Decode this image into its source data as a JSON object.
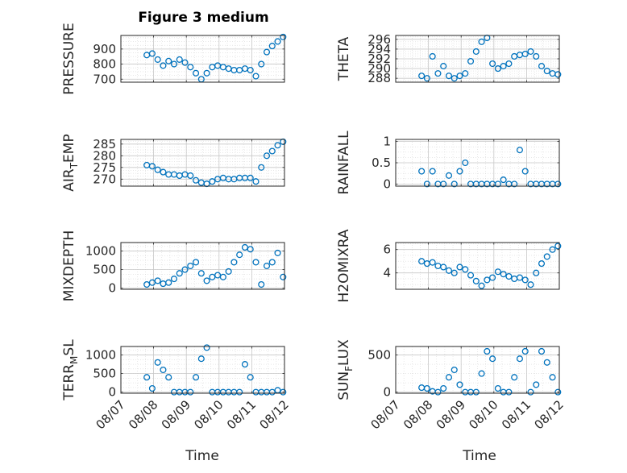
{
  "title": "Figure 3 medium",
  "xlabel": "Time",
  "x_ticks": [
    "08/07",
    "08/08",
    "08/09",
    "08/10",
    "08/11",
    "08/12"
  ],
  "marker_color": "#0072BD",
  "chart_data": [
    {
      "type": "scatter",
      "ylabel": "PRESSURE",
      "yticks": [
        700,
        800,
        900
      ],
      "ylim": [
        680,
        990
      ],
      "grid": true,
      "x": [
        "08/07 19:00",
        "08/07 23:00",
        "08/08 03:00",
        "08/08 07:00",
        "08/08 11:00",
        "08/08 15:00",
        "08/08 19:00",
        "08/08 23:00",
        "08/09 03:00",
        "08/09 07:00",
        "08/09 11:00",
        "08/09 15:00",
        "08/09 19:00",
        "08/09 23:00",
        "08/10 03:00",
        "08/10 07:00",
        "08/10 11:00",
        "08/10 15:00",
        "08/10 19:00",
        "08/10 23:00",
        "08/11 03:00",
        "08/11 07:00",
        "08/11 11:00",
        "08/11 15:00",
        "08/11 19:00",
        "08/11 23:00"
      ],
      "y": [
        860,
        870,
        830,
        790,
        820,
        800,
        830,
        810,
        780,
        740,
        700,
        740,
        780,
        790,
        780,
        770,
        760,
        760,
        770,
        760,
        720,
        800,
        880,
        920,
        950,
        980
      ]
    },
    {
      "type": "scatter",
      "ylabel": "THETA",
      "yticks": [
        288,
        290,
        292,
        294,
        296
      ],
      "ylim": [
        287.2,
        296.8
      ],
      "grid": true,
      "x": [
        "08/07 19:00",
        "08/07 23:00",
        "08/08 03:00",
        "08/08 07:00",
        "08/08 11:00",
        "08/08 15:00",
        "08/08 19:00",
        "08/08 23:00",
        "08/09 03:00",
        "08/09 07:00",
        "08/09 11:00",
        "08/09 15:00",
        "08/09 19:00",
        "08/09 23:00",
        "08/10 03:00",
        "08/10 07:00",
        "08/10 11:00",
        "08/10 15:00",
        "08/10 19:00",
        "08/10 23:00",
        "08/11 03:00",
        "08/11 07:00",
        "08/11 11:00",
        "08/11 15:00",
        "08/11 19:00",
        "08/11 23:00"
      ],
      "y": [
        288.5,
        288.0,
        292.5,
        289.0,
        290.5,
        288.5,
        288.0,
        288.5,
        289.0,
        291.5,
        293.5,
        295.5,
        296.3,
        291.0,
        290.0,
        290.5,
        291.0,
        292.5,
        292.8,
        293.0,
        293.5,
        292.5,
        290.5,
        289.5,
        289.0,
        288.8
      ]
    },
    {
      "type": "scatter",
      "ylabel": "AIR_TEMP",
      "ylabel_main": "AIR",
      "ylabel_sub": "T",
      "ylabel_rest": "EMP",
      "yticks": [
        270,
        275,
        280,
        285
      ],
      "ylim": [
        267,
        287
      ],
      "grid": true,
      "x": [
        "08/07 19:00",
        "08/07 23:00",
        "08/08 03:00",
        "08/08 07:00",
        "08/08 11:00",
        "08/08 15:00",
        "08/08 19:00",
        "08/08 23:00",
        "08/09 03:00",
        "08/09 07:00",
        "08/09 11:00",
        "08/09 15:00",
        "08/09 19:00",
        "08/09 23:00",
        "08/10 03:00",
        "08/10 07:00",
        "08/10 11:00",
        "08/10 15:00",
        "08/10 19:00",
        "08/10 23:00",
        "08/11 03:00",
        "08/11 07:00",
        "08/11 11:00",
        "08/11 15:00",
        "08/11 19:00",
        "08/11 23:00"
      ],
      "y": [
        276,
        275.5,
        274,
        273,
        272,
        272,
        271.5,
        272,
        271.5,
        269.5,
        268.5,
        268,
        269,
        270,
        270.5,
        270,
        270,
        270.5,
        270.5,
        270.5,
        269,
        275,
        280,
        282,
        284.5,
        286
      ]
    },
    {
      "type": "scatter",
      "ylabel": "RAINFALL",
      "yticks": [
        0,
        0.5,
        1
      ],
      "ylim": [
        -0.05,
        1.05
      ],
      "grid": true,
      "x": [
        "08/07 19:00",
        "08/07 23:00",
        "08/08 03:00",
        "08/08 07:00",
        "08/08 11:00",
        "08/08 15:00",
        "08/08 19:00",
        "08/08 23:00",
        "08/09 03:00",
        "08/09 07:00",
        "08/09 11:00",
        "08/09 15:00",
        "08/09 19:00",
        "08/09 23:00",
        "08/10 03:00",
        "08/10 07:00",
        "08/10 11:00",
        "08/10 15:00",
        "08/10 19:00",
        "08/10 23:00",
        "08/11 03:00",
        "08/11 07:00",
        "08/11 11:00",
        "08/11 15:00",
        "08/11 19:00",
        "08/11 23:00"
      ],
      "y": [
        0.3,
        0.0,
        0.3,
        0.0,
        0.0,
        0.2,
        0.0,
        0.3,
        0.5,
        0.0,
        0.0,
        0.0,
        0.0,
        0.0,
        0.0,
        0.1,
        0.0,
        0.0,
        0.8,
        0.3,
        0.0,
        0.0,
        0.0,
        0.0,
        0.0,
        0.0
      ]
    },
    {
      "type": "scatter",
      "ylabel": "MIXDEPTH",
      "yticks": [
        0,
        500,
        1000
      ],
      "ylim": [
        -30,
        1230
      ],
      "grid": true,
      "x": [
        "08/07 19:00",
        "08/07 23:00",
        "08/08 03:00",
        "08/08 07:00",
        "08/08 11:00",
        "08/08 15:00",
        "08/08 19:00",
        "08/08 23:00",
        "08/09 03:00",
        "08/09 07:00",
        "08/09 11:00",
        "08/09 15:00",
        "08/09 19:00",
        "08/09 23:00",
        "08/10 03:00",
        "08/10 07:00",
        "08/10 11:00",
        "08/10 15:00",
        "08/10 19:00",
        "08/10 23:00",
        "08/11 03:00",
        "08/11 07:00",
        "08/11 11:00",
        "08/11 15:00",
        "08/11 19:00",
        "08/11 23:00"
      ],
      "y": [
        100,
        150,
        200,
        120,
        150,
        250,
        400,
        500,
        600,
        700,
        400,
        200,
        300,
        350,
        300,
        450,
        700,
        900,
        1100,
        1050,
        700,
        100,
        600,
        700,
        950,
        300
      ]
    },
    {
      "type": "scatter",
      "ylabel": "H2OMIXRA",
      "yticks": [
        4,
        6
      ],
      "ylim": [
        2.6,
        6.6
      ],
      "grid": true,
      "x": [
        "08/07 19:00",
        "08/07 23:00",
        "08/08 03:00",
        "08/08 07:00",
        "08/08 11:00",
        "08/08 15:00",
        "08/08 19:00",
        "08/08 23:00",
        "08/09 03:00",
        "08/09 07:00",
        "08/09 11:00",
        "08/09 15:00",
        "08/09 19:00",
        "08/09 23:00",
        "08/10 03:00",
        "08/10 07:00",
        "08/10 11:00",
        "08/10 15:00",
        "08/10 19:00",
        "08/10 23:00",
        "08/11 03:00",
        "08/11 07:00",
        "08/11 11:00",
        "08/11 15:00",
        "08/11 19:00",
        "08/11 23:00"
      ],
      "y": [
        5.0,
        4.8,
        4.9,
        4.6,
        4.5,
        4.2,
        4.0,
        4.5,
        4.3,
        3.8,
        3.3,
        2.9,
        3.4,
        3.6,
        4.1,
        3.9,
        3.7,
        3.5,
        3.6,
        3.4,
        3.0,
        4.0,
        4.8,
        5.4,
        6.0,
        6.3
      ]
    },
    {
      "type": "scatter",
      "ylabel": "TERR_MSL",
      "ylabel_main": "TERR",
      "ylabel_sub": "M",
      "ylabel_rest": "SL",
      "yticks": [
        0,
        500,
        1000
      ],
      "ylim": [
        -30,
        1230
      ],
      "grid": true,
      "x": [
        "08/07 19:00",
        "08/07 23:00",
        "08/08 03:00",
        "08/08 07:00",
        "08/08 11:00",
        "08/08 15:00",
        "08/08 19:00",
        "08/08 23:00",
        "08/09 03:00",
        "08/09 07:00",
        "08/09 11:00",
        "08/09 15:00",
        "08/09 19:00",
        "08/09 23:00",
        "08/10 03:00",
        "08/10 07:00",
        "08/10 11:00",
        "08/10 15:00",
        "08/10 19:00",
        "08/10 23:00",
        "08/11 03:00",
        "08/11 07:00",
        "08/11 11:00",
        "08/11 15:00",
        "08/11 19:00",
        "08/11 23:00"
      ],
      "y": [
        400,
        100,
        800,
        600,
        400,
        0,
        0,
        0,
        0,
        400,
        900,
        1200,
        0,
        0,
        0,
        0,
        0,
        0,
        750,
        400,
        0,
        0,
        0,
        0,
        50,
        0
      ]
    },
    {
      "type": "scatter",
      "ylabel": "SUN_FLUX",
      "ylabel_main": "SUN",
      "ylabel_sub": "F",
      "ylabel_rest": "LUX",
      "yticks": [
        0,
        500
      ],
      "ylim": [
        -15,
        615
      ],
      "grid": true,
      "x": [
        "08/07 19:00",
        "08/07 23:00",
        "08/08 03:00",
        "08/08 07:00",
        "08/08 11:00",
        "08/08 15:00",
        "08/08 19:00",
        "08/08 23:00",
        "08/09 03:00",
        "08/09 07:00",
        "08/09 11:00",
        "08/09 15:00",
        "08/09 19:00",
        "08/09 23:00",
        "08/10 03:00",
        "08/10 07:00",
        "08/10 11:00",
        "08/10 15:00",
        "08/10 19:00",
        "08/10 23:00",
        "08/11 03:00",
        "08/11 07:00",
        "08/11 11:00",
        "08/11 15:00",
        "08/11 19:00",
        "08/11 23:00"
      ],
      "y": [
        60,
        50,
        10,
        0,
        50,
        200,
        300,
        100,
        0,
        0,
        0,
        250,
        550,
        450,
        50,
        0,
        0,
        200,
        450,
        550,
        0,
        100,
        550,
        400,
        200,
        0
      ]
    }
  ]
}
